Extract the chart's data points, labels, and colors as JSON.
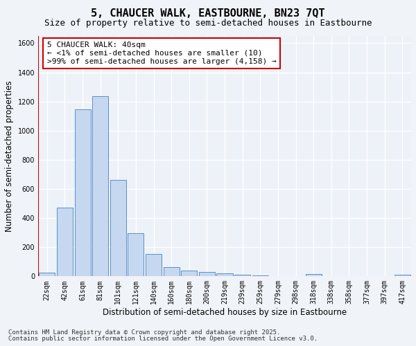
{
  "title": "5, CHAUCER WALK, EASTBOURNE, BN23 7QT",
  "subtitle": "Size of property relative to semi-detached houses in Eastbourne",
  "xlabel": "Distribution of semi-detached houses by size in Eastbourne",
  "ylabel": "Number of semi-detached properties",
  "footnote1": "Contains HM Land Registry data © Crown copyright and database right 2025.",
  "footnote2": "Contains public sector information licensed under the Open Government Licence v3.0.",
  "annotation_title": "5 CHAUCER WALK: 40sqm",
  "annotation_line1": "← <1% of semi-detached houses are smaller (10)",
  "annotation_line2": ">99% of semi-detached houses are larger (4,158) →",
  "bar_color": "#c5d8f0",
  "bar_edge_color": "#5b8fc9",
  "marker_color": "#cc0000",
  "categories": [
    "22sqm",
    "42sqm",
    "61sqm",
    "81sqm",
    "101sqm",
    "121sqm",
    "140sqm",
    "160sqm",
    "180sqm",
    "200sqm",
    "219sqm",
    "239sqm",
    "259sqm",
    "279sqm",
    "298sqm",
    "318sqm",
    "338sqm",
    "358sqm",
    "377sqm",
    "397sqm",
    "417sqm"
  ],
  "values": [
    25,
    470,
    1145,
    1235,
    660,
    295,
    155,
    65,
    40,
    30,
    20,
    10,
    5,
    3,
    0,
    15,
    0,
    0,
    0,
    0,
    10
  ],
  "ylim": [
    0,
    1650
  ],
  "yticks": [
    0,
    200,
    400,
    600,
    800,
    1000,
    1200,
    1400,
    1600
  ],
  "bg_color": "#f0f3f8",
  "plot_bg_color": "#edf1f8",
  "grid_color": "#ffffff",
  "title_fontsize": 11,
  "subtitle_fontsize": 9,
  "axis_label_fontsize": 8.5,
  "tick_fontsize": 7,
  "annotation_fontsize": 8,
  "footnote_fontsize": 6.5
}
